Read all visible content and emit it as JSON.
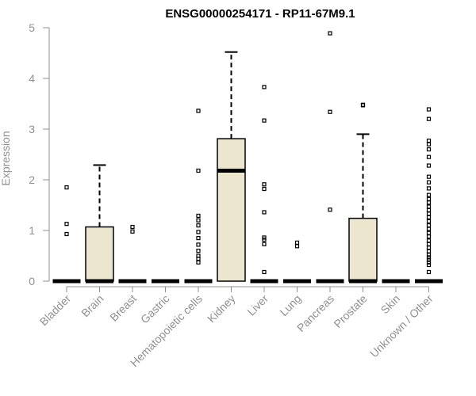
{
  "chart_data": {
    "type": "box",
    "title": "ENSG00000254171 - RP11-67M9.1",
    "xlabel": "",
    "ylabel": "Expression",
    "ylim": [
      0,
      5
    ],
    "yticks": [
      0,
      1,
      2,
      3,
      4,
      5
    ],
    "grid": false,
    "colors": {
      "box_fill": "#ede6cf",
      "stroke": "#000000",
      "axis": "#909090",
      "tick_text": "#909090",
      "title": "#000000"
    },
    "categories": [
      "Bladder",
      "Brain",
      "Breast",
      "Gastric",
      "Hematopoietic cells",
      "Kidney",
      "Liver",
      "Lung",
      "Pancreas",
      "Prostate",
      "Skin",
      "Unknown / Other"
    ],
    "boxes": [
      {
        "category": "Bladder",
        "q1": 0,
        "median": 0,
        "q3": 0,
        "whisker_low": 0,
        "whisker_high": 0,
        "outliers": [
          1.85,
          1.13,
          0.93
        ]
      },
      {
        "category": "Brain",
        "q1": 0,
        "median": 0,
        "q3": 1.07,
        "whisker_low": 0,
        "whisker_high": 2.29,
        "outliers": []
      },
      {
        "category": "Breast",
        "q1": 0,
        "median": 0,
        "q3": 0,
        "whisker_low": 0,
        "whisker_high": 0,
        "outliers": [
          1.07,
          0.98
        ]
      },
      {
        "category": "Gastric",
        "q1": 0,
        "median": 0,
        "q3": 0,
        "whisker_low": 0,
        "whisker_high": 0,
        "outliers": []
      },
      {
        "category": "Hematopoietic cells",
        "q1": 0,
        "median": 0,
        "q3": 0,
        "whisker_low": 0,
        "whisker_high": 0,
        "outliers": [
          3.36,
          2.18,
          1.29,
          1.2,
          1.1,
          0.97,
          0.85,
          0.72,
          0.6,
          0.5,
          0.44,
          0.37
        ]
      },
      {
        "category": "Kidney",
        "q1": 0,
        "median": 2.18,
        "q3": 2.81,
        "whisker_low": 0,
        "whisker_high": 4.52,
        "outliers": []
      },
      {
        "category": "Liver",
        "q1": 0,
        "median": 0,
        "q3": 0,
        "whisker_low": 0,
        "whisker_high": 0,
        "outliers": [
          3.83,
          3.17,
          1.91,
          1.82,
          1.36,
          0.86,
          0.82,
          0.73,
          0.18
        ]
      },
      {
        "category": "Lung",
        "q1": 0,
        "median": 0,
        "q3": 0,
        "whisker_low": 0,
        "whisker_high": 0,
        "outliers": [
          0.76,
          0.69
        ]
      },
      {
        "category": "Pancreas",
        "q1": 0,
        "median": 0,
        "q3": 0,
        "whisker_low": 0,
        "whisker_high": 0,
        "outliers": [
          4.89,
          3.34,
          1.41
        ]
      },
      {
        "category": "Prostate",
        "q1": 0,
        "median": 0,
        "q3": 1.24,
        "whisker_low": 0,
        "whisker_high": 2.9,
        "outliers": [
          3.48,
          3.47
        ]
      },
      {
        "category": "Skin",
        "q1": 0,
        "median": 0,
        "q3": 0,
        "whisker_low": 0,
        "whisker_high": 0,
        "outliers": []
      },
      {
        "category": "Unknown / Other",
        "q1": 0,
        "median": 0,
        "q3": 0,
        "whisker_low": 0,
        "whisker_high": 0,
        "outliers": [
          3.39,
          3.2,
          2.77,
          2.7,
          2.6,
          2.45,
          2.28,
          2.06,
          1.95,
          1.83,
          1.7,
          1.62,
          1.55,
          1.47,
          1.4,
          1.33,
          1.26,
          1.18,
          1.1,
          1.03,
          0.95,
          0.88,
          0.8,
          0.73,
          0.66,
          0.59,
          0.52,
          0.47,
          0.42,
          0.37,
          0.32,
          0.18
        ]
      }
    ]
  }
}
